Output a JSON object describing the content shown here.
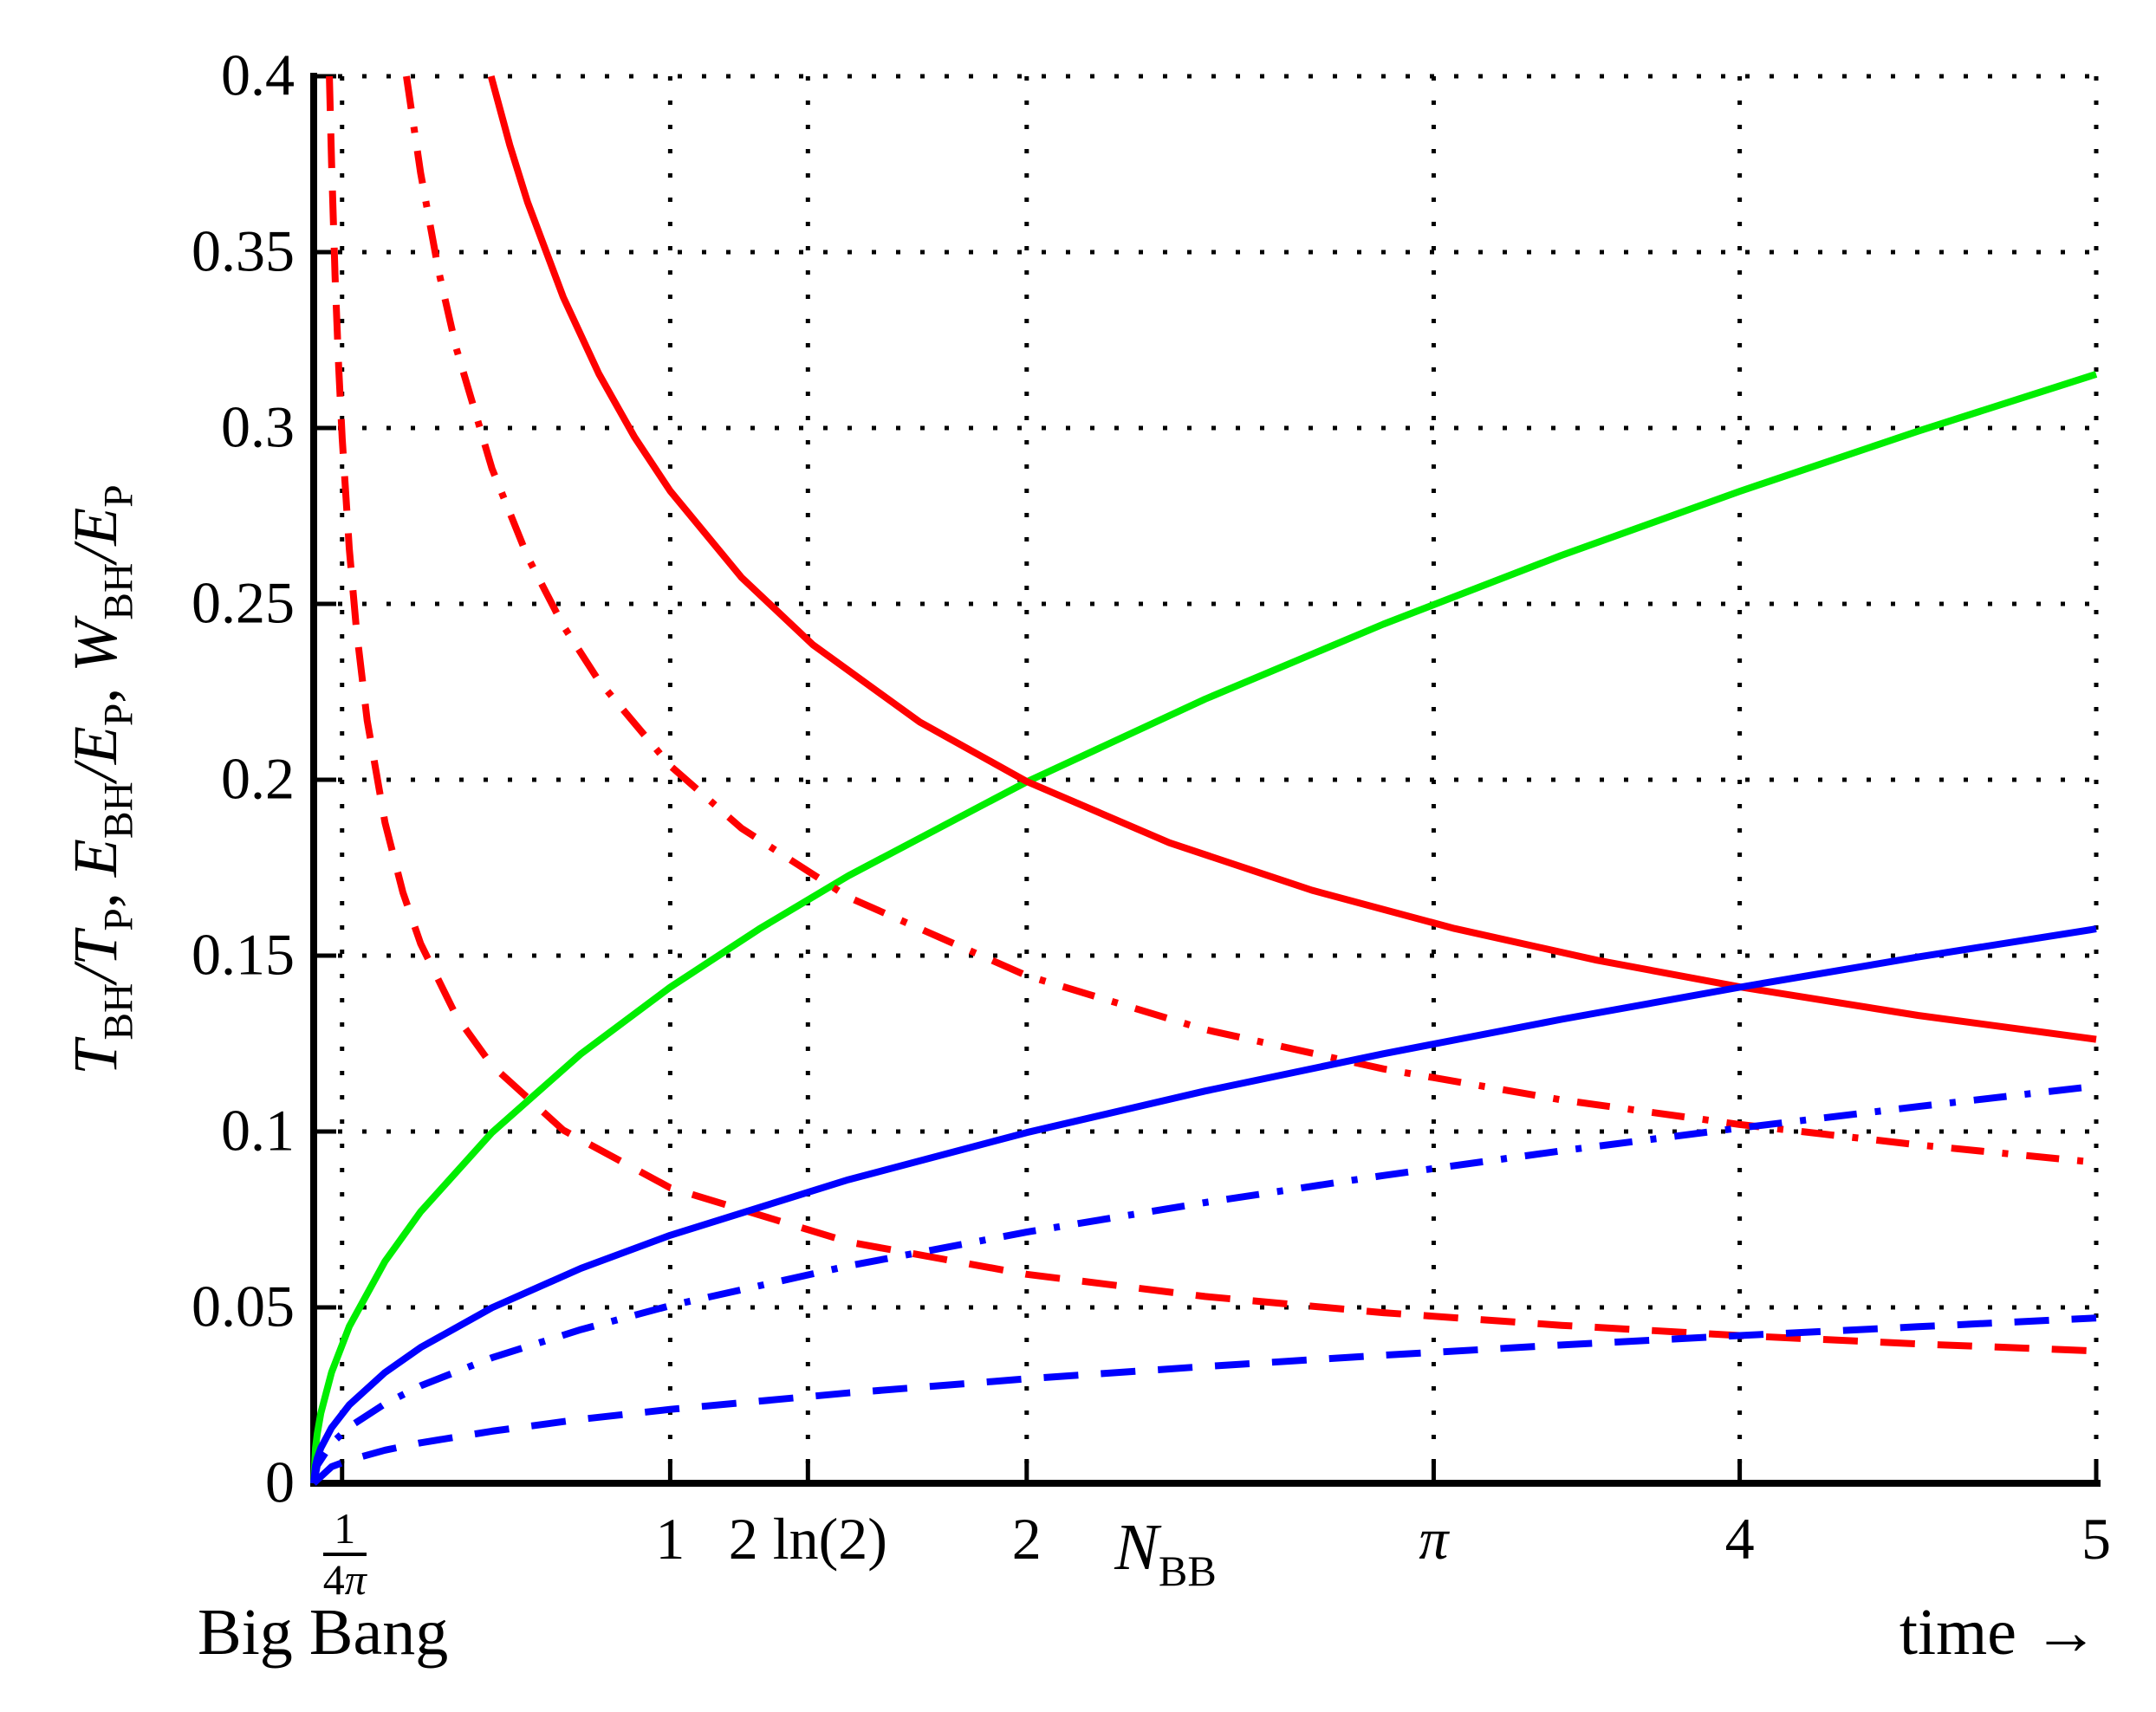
{
  "figure": {
    "background": "#ffffff",
    "annotations": {
      "bottom_left": "Big Bang",
      "bottom_right": "time →"
    }
  },
  "chart_data": {
    "type": "line",
    "title": "",
    "xlim": [
      0,
      5
    ],
    "ylim": [
      0,
      0.4
    ],
    "grid": "dotted",
    "grid_color": "#000000",
    "axis_color": "#000000",
    "xlabel_tokens": [
      {
        "text": "N",
        "italic": true
      },
      {
        "text": "BB",
        "sub": true
      }
    ],
    "ylabel_tokens": [
      {
        "text": "T",
        "italic": true
      },
      {
        "text": "BH",
        "sub": true
      },
      {
        "text": "/T",
        "italic": true
      },
      {
        "text": "P",
        "sub": true
      },
      {
        "text": ", ",
        "italic": false
      },
      {
        "text": "E",
        "italic": true
      },
      {
        "text": "BH",
        "sub": true
      },
      {
        "text": "/E",
        "italic": true
      },
      {
        "text": "P",
        "sub": true
      },
      {
        "text": ", ",
        "italic": false
      },
      {
        "text": "W",
        "italic": true
      },
      {
        "text": "BH",
        "sub": true
      },
      {
        "text": "/E",
        "italic": true
      },
      {
        "text": "P",
        "sub": true
      }
    ],
    "x_ticks": [
      {
        "value": 0.0796,
        "numerator": "1",
        "denominator": "4π"
      },
      {
        "value": 1,
        "label": "1"
      },
      {
        "value": 1.3863,
        "label": "2 ln(2)"
      },
      {
        "value": 2,
        "label": "2"
      },
      {
        "value": 3.1416,
        "label": "π"
      },
      {
        "value": 4,
        "label": "4"
      },
      {
        "value": 5,
        "label": "5"
      }
    ],
    "y_ticks": [
      {
        "value": 0,
        "label": "0"
      },
      {
        "value": 0.05,
        "label": "0.05"
      },
      {
        "value": 0.1,
        "label": "0.1"
      },
      {
        "value": 0.15,
        "label": "0.15"
      },
      {
        "value": 0.2,
        "label": "0.2"
      },
      {
        "value": 0.25,
        "label": "0.25"
      },
      {
        "value": 0.3,
        "label": "0.3"
      },
      {
        "value": 0.35,
        "label": "0.35"
      },
      {
        "value": 0.4,
        "label": "0.4"
      }
    ],
    "series": [
      {
        "name": "green-solid",
        "color": "#00ee00",
        "style": "solid",
        "points": [
          [
            0,
            0
          ],
          [
            0.005,
            0.01
          ],
          [
            0.01,
            0.0141
          ],
          [
            0.02,
            0.0199
          ],
          [
            0.05,
            0.0315
          ],
          [
            0.1,
            0.0446
          ],
          [
            0.2,
            0.0631
          ],
          [
            0.3,
            0.0772
          ],
          [
            0.5,
            0.0997
          ],
          [
            0.75,
            0.1221
          ],
          [
            1,
            0.141
          ],
          [
            1.25,
            0.1576
          ],
          [
            1.5,
            0.1727
          ],
          [
            2,
            0.1994
          ],
          [
            2.5,
            0.2229
          ],
          [
            3,
            0.2442
          ],
          [
            3.5,
            0.2638
          ],
          [
            4,
            0.282
          ],
          [
            4.5,
            0.2991
          ],
          [
            5,
            0.3153
          ]
        ]
      },
      {
        "name": "red-solid",
        "color": "#ff0000",
        "style": "solid",
        "points": [
          [
            0.4975,
            0.4
          ],
          [
            0.55,
            0.3804
          ],
          [
            0.6,
            0.3642
          ],
          [
            0.7,
            0.3372
          ],
          [
            0.8,
            0.3154
          ],
          [
            0.9,
            0.2974
          ],
          [
            1,
            0.2821
          ],
          [
            1.2,
            0.2575
          ],
          [
            1.4,
            0.2384
          ],
          [
            1.7,
            0.2164
          ],
          [
            2,
            0.1995
          ],
          [
            2.4,
            0.1821
          ],
          [
            2.8,
            0.1686
          ],
          [
            3.2,
            0.1577
          ],
          [
            3.6,
            0.1487
          ],
          [
            4,
            0.1411
          ],
          [
            4.5,
            0.133
          ],
          [
            5,
            0.1262
          ]
        ]
      },
      {
        "name": "red-dash-dot",
        "color": "#ff0000",
        "style": "dashdot",
        "points": [
          [
            0.26,
            0.4
          ],
          [
            0.3,
            0.3725
          ],
          [
            0.35,
            0.3448
          ],
          [
            0.4,
            0.3226
          ],
          [
            0.5,
            0.2885
          ],
          [
            0.6,
            0.2634
          ],
          [
            0.7,
            0.2438
          ],
          [
            0.8,
            0.2281
          ],
          [
            1,
            0.204
          ],
          [
            1.2,
            0.1862
          ],
          [
            1.5,
            0.1666
          ],
          [
            2,
            0.1443
          ],
          [
            2.5,
            0.129
          ],
          [
            3,
            0.1178
          ],
          [
            3.5,
            0.109
          ],
          [
            4,
            0.102
          ],
          [
            4.5,
            0.0962
          ],
          [
            5,
            0.0912
          ]
        ]
      },
      {
        "name": "red-dashed",
        "color": "#ff0000",
        "style": "dashed",
        "points": [
          [
            0.0441,
            0.4
          ],
          [
            0.05,
            0.3757
          ],
          [
            0.06,
            0.3429
          ],
          [
            0.07,
            0.3175
          ],
          [
            0.08,
            0.297
          ],
          [
            0.1,
            0.2656
          ],
          [
            0.12,
            0.2425
          ],
          [
            0.15,
            0.2169
          ],
          [
            0.2,
            0.1878
          ],
          [
            0.25,
            0.168
          ],
          [
            0.3,
            0.1534
          ],
          [
            0.4,
            0.1328
          ],
          [
            0.5,
            0.1188
          ],
          [
            0.7,
            0.1004
          ],
          [
            1,
            0.084
          ],
          [
            1.5,
            0.0686
          ],
          [
            2,
            0.0594
          ],
          [
            2.5,
            0.0531
          ],
          [
            3,
            0.0485
          ],
          [
            3.5,
            0.0449
          ],
          [
            4,
            0.042
          ],
          [
            4.5,
            0.0396
          ],
          [
            5,
            0.0376
          ]
        ]
      },
      {
        "name": "blue-solid",
        "color": "#0000ff",
        "style": "solid",
        "points": [
          [
            0,
            0
          ],
          [
            0.005,
            0.005
          ],
          [
            0.01,
            0.0071
          ],
          [
            0.02,
            0.01
          ],
          [
            0.05,
            0.0158
          ],
          [
            0.1,
            0.0223
          ],
          [
            0.2,
            0.0315
          ],
          [
            0.3,
            0.0386
          ],
          [
            0.5,
            0.0499
          ],
          [
            0.75,
            0.0611
          ],
          [
            1,
            0.0705
          ],
          [
            1.5,
            0.0863
          ],
          [
            2,
            0.0997
          ],
          [
            2.5,
            0.1115
          ],
          [
            3,
            0.1221
          ],
          [
            3.5,
            0.1319
          ],
          [
            4,
            0.141
          ],
          [
            4.5,
            0.1496
          ],
          [
            5,
            0.1576
          ]
        ]
      },
      {
        "name": "blue-dash-dot",
        "color": "#0000ff",
        "style": "dashdot",
        "points": [
          [
            0,
            0
          ],
          [
            0.01,
            0.0051
          ],
          [
            0.05,
            0.0113
          ],
          [
            0.1,
            0.016
          ],
          [
            0.2,
            0.0226
          ],
          [
            0.3,
            0.0277
          ],
          [
            0.5,
            0.0357
          ],
          [
            0.75,
            0.0437
          ],
          [
            1,
            0.0505
          ],
          [
            1.5,
            0.0618
          ],
          [
            2,
            0.0714
          ],
          [
            2.5,
            0.0798
          ],
          [
            3,
            0.0875
          ],
          [
            3.5,
            0.0945
          ],
          [
            4,
            0.101
          ],
          [
            4.5,
            0.1071
          ],
          [
            5,
            0.1129
          ]
        ]
      },
      {
        "name": "blue-dashed",
        "color": "#0000ff",
        "style": "dashed",
        "points": [
          [
            0,
            0
          ],
          [
            0.05,
            0.0047
          ],
          [
            0.1,
            0.0066
          ],
          [
            0.2,
            0.0094
          ],
          [
            0.3,
            0.0115
          ],
          [
            0.5,
            0.0148
          ],
          [
            0.75,
            0.0182
          ],
          [
            1,
            0.021
          ],
          [
            1.5,
            0.0257
          ],
          [
            2,
            0.0297
          ],
          [
            2.5,
            0.0332
          ],
          [
            3,
            0.0364
          ],
          [
            3.5,
            0.0393
          ],
          [
            4,
            0.042
          ],
          [
            4.5,
            0.0445
          ],
          [
            5,
            0.047
          ]
        ]
      }
    ]
  }
}
